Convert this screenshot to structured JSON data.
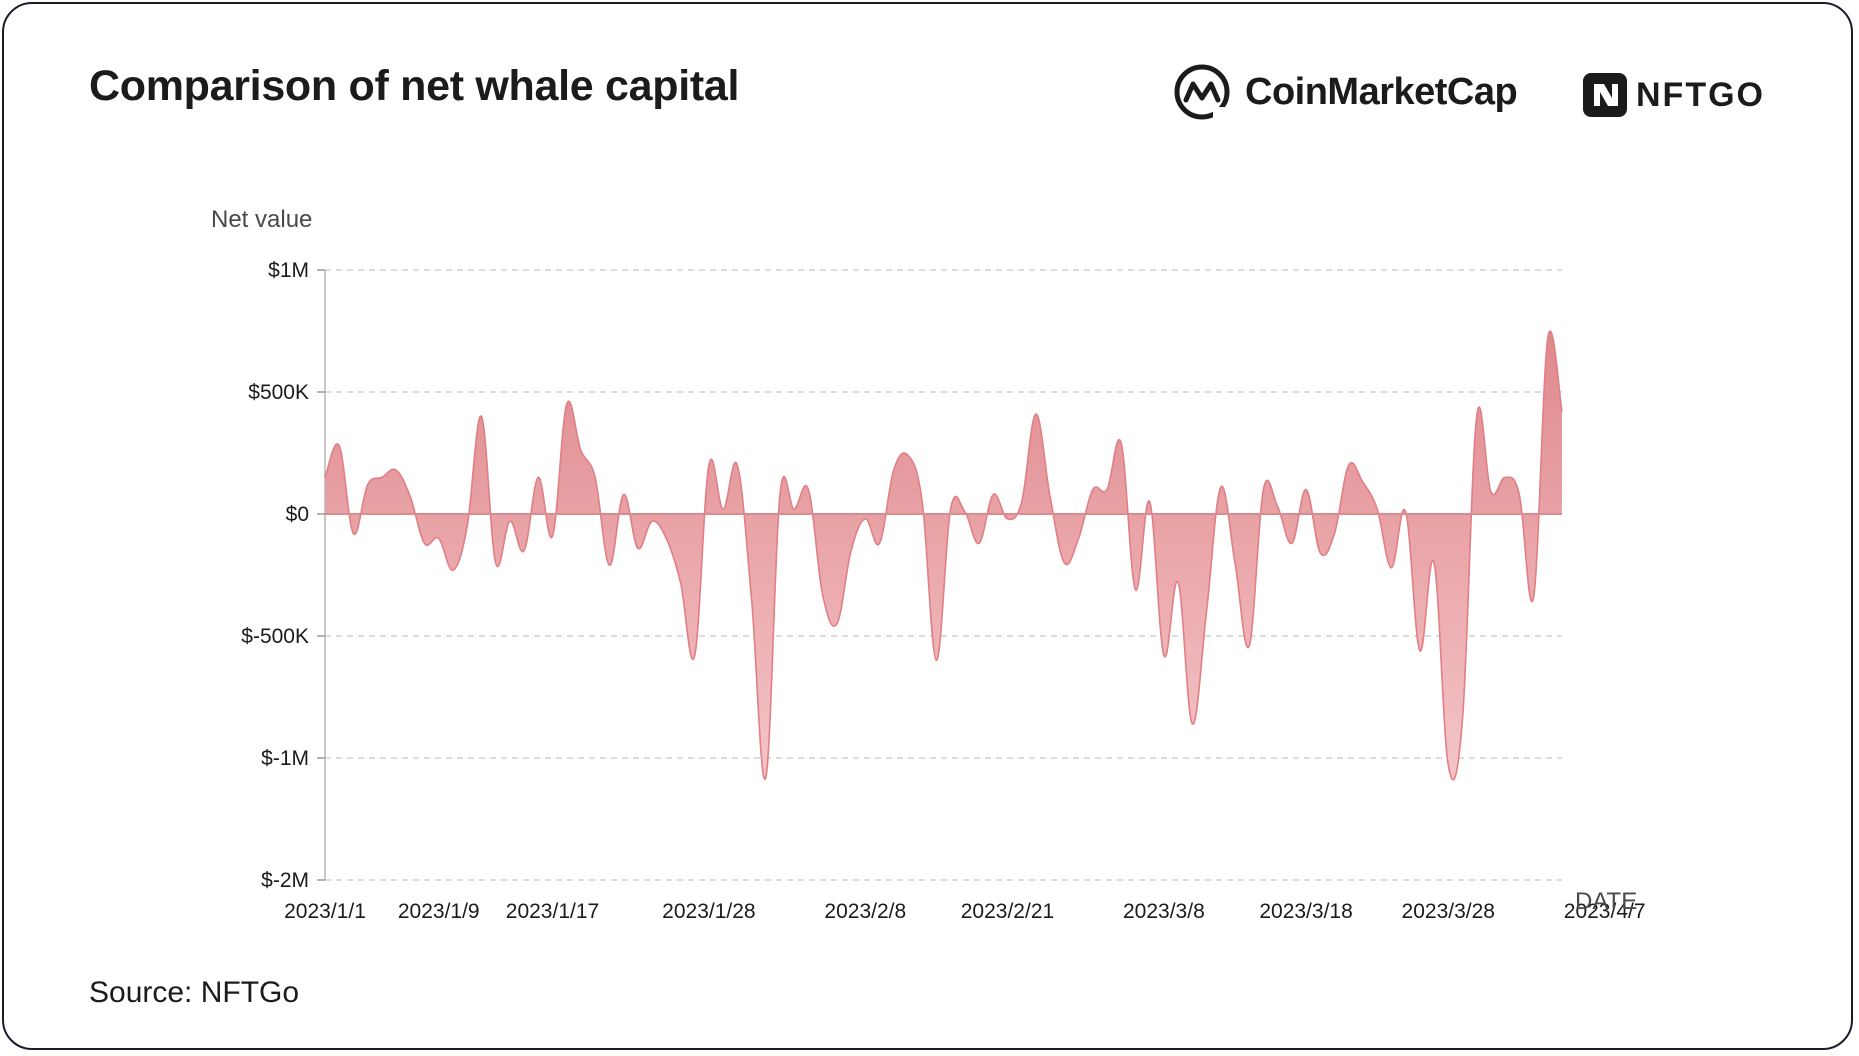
{
  "title": "Comparison of net whale capital",
  "source": "Source: NFTGo",
  "logos": {
    "coinmarketcap": {
      "text": "CoinMarketCap",
      "icon": "coinmarketcap-logo-icon"
    },
    "nftgo": {
      "text": "NFTGO",
      "icon": "nftgo-logo-icon"
    }
  },
  "colors": {
    "fill_top": "#e08a8e",
    "fill_bottom": "#f4c5c8",
    "line": "#e07f85",
    "zero_line": "#d98c90",
    "grid": "#c8c8c8",
    "text": "#1b1b1b"
  },
  "chart_data": {
    "type": "area",
    "ylabel": "Net value",
    "xlabel": "DATE",
    "y_ticks": [
      {
        "label": "$1M",
        "value": 1000000
      },
      {
        "label": "$500K",
        "value": 500000
      },
      {
        "label": "$0",
        "value": 0
      },
      {
        "label": "$-500K",
        "value": -500000
      },
      {
        "label": "$-1M",
        "value": -1000000
      },
      {
        "label": "$-2M",
        "value": -1500000
      }
    ],
    "ylim": [
      -1500000,
      1000000
    ],
    "x_ticks": [
      "2023/1/1",
      "2023/1/9",
      "2023/1/17",
      "2023/1/28",
      "2023/2/8",
      "2023/2/21",
      "2023/3/8",
      "2023/3/18",
      "2023/3/28",
      "2023/4/7"
    ],
    "x_tick_index": [
      0,
      8,
      16,
      27,
      38,
      48,
      59,
      69,
      79,
      90
    ],
    "grid": true,
    "series": [
      {
        "values": [
          150000,
          280000,
          -80000,
          120000,
          150000,
          180000,
          70000,
          -120000,
          -100000,
          -230000,
          -50000,
          400000,
          -200000,
          -30000,
          -150000,
          150000,
          -90000,
          450000,
          260000,
          150000,
          -210000,
          80000,
          -140000,
          -30000,
          -100000,
          -280000,
          -580000,
          200000,
          20000,
          200000,
          -350000,
          -1080000,
          80000,
          20000,
          100000,
          -330000,
          -450000,
          -150000,
          -20000,
          -120000,
          180000,
          240000,
          50000,
          -600000,
          20000,
          10000,
          -120000,
          80000,
          -20000,
          50000,
          410000,
          70000,
          -200000,
          -100000,
          100000,
          100000,
          290000,
          -310000,
          50000,
          -580000,
          -280000,
          -860000,
          -400000,
          110000,
          -200000,
          -540000,
          100000,
          30000,
          -120000,
          100000,
          -160000,
          -80000,
          200000,
          130000,
          20000,
          -220000,
          10000,
          -560000,
          -200000,
          -1030000,
          -840000,
          400000,
          90000,
          150000,
          80000,
          -340000,
          720000,
          420000
        ]
      }
    ]
  }
}
